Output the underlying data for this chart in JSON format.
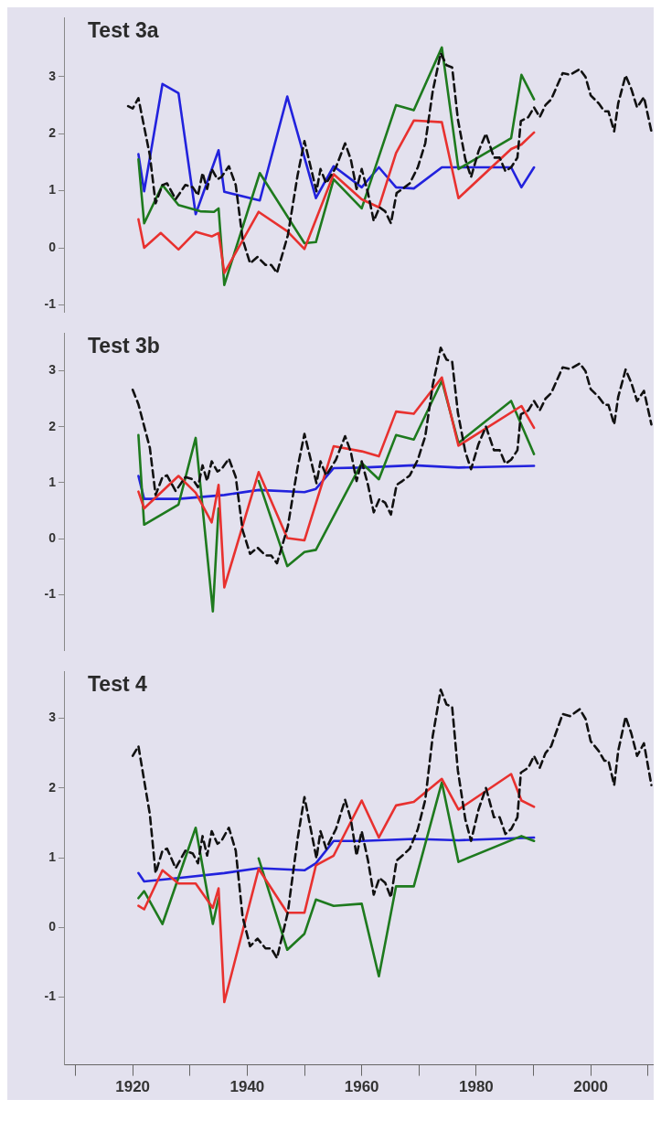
{
  "chart_data": [
    {
      "type": "line",
      "title": "Test 3a",
      "xlim": [
        1908,
        2011
      ],
      "ylim": [
        -1.13,
        4.03
      ],
      "yticks": [
        -1,
        0,
        1,
        2,
        3
      ],
      "tick_labels": "y",
      "grid": false,
      "legend": false,
      "marker": "none",
      "series": [
        {
          "color": "#111111",
          "line_style": "dashed",
          "x": [
            1919.2,
            1920,
            1921,
            1923,
            1924,
            1925.2,
            1926,
            1927.5,
            1929.2,
            1930.5,
            1931.4,
            1932.2,
            1933,
            1933.8,
            1934.8,
            1935.5,
            1936.8,
            1938,
            1939.2,
            1940.5,
            1941.8,
            1943.2,
            1944.2,
            1945.2,
            1946.1,
            1947.1,
            1948.8,
            1950,
            1951.1,
            1952.1,
            1952.8,
            1953.8,
            1955.5,
            1957.1,
            1958.1,
            1959.1,
            1960,
            1961.1,
            1962.1,
            1963.1,
            1964.1,
            1965.1,
            1966.1,
            1967.1,
            1968.4,
            1969.8,
            1971.1,
            1972.4,
            1973.8,
            1974.8,
            1975.8,
            1976.8,
            1978.1,
            1979.1,
            1980.4,
            1981.7,
            1983.1,
            1984.1,
            1985.1,
            1986.1,
            1987.2,
            1987.8,
            1989.1,
            1990.1,
            1991.1,
            1992.1,
            1993.1,
            1995.1,
            1996.4,
            1998.1,
            1999.1,
            2000,
            2001.4,
            2002.4,
            2003.1,
            2004.1,
            2004.8,
            2006.1,
            2007.1,
            2008.1,
            2009.3,
            2010.6
          ],
          "values": [
            2.48,
            2.44,
            2.62,
            1.62,
            0.78,
            1.1,
            1.13,
            0.85,
            1.1,
            1.06,
            0.92,
            1.31,
            1.03,
            1.38,
            1.2,
            1.24,
            1.43,
            1.1,
            0.15,
            -0.27,
            -0.16,
            -0.3,
            -0.3,
            -0.44,
            -0.13,
            0.22,
            1.27,
            1.87,
            1.41,
            0.99,
            1.38,
            1.13,
            1.41,
            1.83,
            1.55,
            1.03,
            1.38,
            0.96,
            0.47,
            0.71,
            0.64,
            0.43,
            0.96,
            1.03,
            1.13,
            1.41,
            1.83,
            2.74,
            3.41,
            3.2,
            3.16,
            2.25,
            1.55,
            1.24,
            1.69,
            2.0,
            1.58,
            1.58,
            1.34,
            1.41,
            1.58,
            2.22,
            2.29,
            2.46,
            2.29,
            2.5,
            2.6,
            3.06,
            3.03,
            3.13,
            2.99,
            2.67,
            2.53,
            2.39,
            2.39,
            2.04,
            2.53,
            3.02,
            2.78,
            2.46,
            2.64,
            2.04
          ]
        },
        {
          "color": "#e8312f",
          "line_style": "solid",
          "x": [
            1921,
            1922,
            1924.9,
            1928,
            1931,
            1933.8,
            1935,
            1936,
            1942,
            1947,
            1950,
            1955.1,
            1960,
            1963,
            1966,
            1969.1,
            1974,
            1976.9,
            1986.1,
            1987.9,
            1990.1
          ],
          "values": [
            0.5,
            0,
            0.26,
            -0.03,
            0.28,
            0.2,
            0.26,
            -0.44,
            0.63,
            0.29,
            -0.02,
            1.29,
            0.85,
            0.71,
            1.66,
            2.23,
            2.2,
            0.87,
            1.73,
            1.81,
            2.02
          ]
        },
        {
          "color": "#1e7a1e",
          "line_style": "solid",
          "x": [
            1921,
            1922,
            1925.2,
            1928,
            1931.8,
            1934.2,
            1935,
            1936,
            1942.2,
            1950,
            1952,
            1955.1,
            1960,
            1966,
            1969.1,
            1974,
            1976.9,
            1986.1,
            1987.9,
            1990.1
          ],
          "values": [
            1.55,
            0.43,
            1.1,
            0.75,
            0.64,
            0.63,
            0.69,
            -0.65,
            1.31,
            0.08,
            0.1,
            1.2,
            0.69,
            2.5,
            2.41,
            3.51,
            1.38,
            1.92,
            3.03,
            2.6
          ]
        },
        {
          "color": "#2222dd",
          "line_style": "solid",
          "x": [
            1921,
            1922,
            1925.2,
            1928,
            1931,
            1935,
            1936,
            1942.2,
            1947,
            1952,
            1955.1,
            1960,
            1963,
            1966,
            1969.1,
            1974,
            1986.1,
            1987.9,
            1990.1
          ],
          "values": [
            1.64,
            0.99,
            2.87,
            2.71,
            0.59,
            1.71,
            0.98,
            0.83,
            2.65,
            0.87,
            1.43,
            1.06,
            1.41,
            1.06,
            1.04,
            1.41,
            1.41,
            1.06,
            1.41
          ]
        }
      ]
    },
    {
      "type": "line",
      "title": "Test 3b",
      "xlim": [
        1908,
        2011
      ],
      "ylim": [
        -2,
        3.67
      ],
      "yticks": [
        -1,
        0,
        1,
        2,
        3
      ],
      "tick_labels": "y",
      "grid": false,
      "legend": false,
      "marker": "none",
      "series": [
        {
          "color": "#111111",
          "line_style": "dashed",
          "x": [
            1920,
            1921,
            1923,
            1924,
            1925.2,
            1926,
            1927.5,
            1929.2,
            1930.5,
            1931.4,
            1932.2,
            1933,
            1933.8,
            1934.8,
            1935.5,
            1936.8,
            1938,
            1939.2,
            1940.5,
            1941.8,
            1943.2,
            1944.2,
            1945.2,
            1946.1,
            1947.1,
            1948.8,
            1950,
            1951.1,
            1952.1,
            1952.8,
            1953.8,
            1955.5,
            1957.1,
            1958.1,
            1959.1,
            1960,
            1961.1,
            1962.1,
            1963.1,
            1964.1,
            1965.1,
            1966.1,
            1967.1,
            1968.4,
            1969.8,
            1971.1,
            1972.4,
            1973.8,
            1974.8,
            1975.8,
            1976.8,
            1978.1,
            1979.1,
            1980.4,
            1981.7,
            1983.1,
            1984.1,
            1985.1,
            1986.1,
            1987.2,
            1987.8,
            1989.1,
            1990.1,
            1991.1,
            1992.1,
            1993.1,
            1995.1,
            1996.4,
            1998.1,
            1999.1,
            2000,
            2001.4,
            2002.4,
            2003.1,
            2004.1,
            2004.8,
            2006.1,
            2007.1,
            2008.1,
            2009.3,
            2010.6
          ],
          "values": [
            2.66,
            2.4,
            1.62,
            0.78,
            1.1,
            1.13,
            0.85,
            1.1,
            1.06,
            0.92,
            1.31,
            1.03,
            1.38,
            1.2,
            1.24,
            1.43,
            1.1,
            0.15,
            -0.27,
            -0.16,
            -0.3,
            -0.3,
            -0.44,
            -0.13,
            0.22,
            1.27,
            1.87,
            1.41,
            0.99,
            1.38,
            1.13,
            1.41,
            1.83,
            1.55,
            1.03,
            1.38,
            0.96,
            0.47,
            0.71,
            0.64,
            0.43,
            0.96,
            1.03,
            1.13,
            1.41,
            1.83,
            2.74,
            3.41,
            3.2,
            3.16,
            2.25,
            1.55,
            1.24,
            1.69,
            2.0,
            1.58,
            1.58,
            1.34,
            1.41,
            1.58,
            2.22,
            2.29,
            2.46,
            2.29,
            2.5,
            2.6,
            3.06,
            3.03,
            3.13,
            2.99,
            2.67,
            2.53,
            2.39,
            2.39,
            2.04,
            2.53,
            3.02,
            2.78,
            2.46,
            2.64,
            2.04
          ]
        },
        {
          "color": "#e8312f",
          "line_style": "solid",
          "x": [
            1921,
            1922,
            1928,
            1931,
            1933.8,
            1935,
            1936,
            1942,
            1947,
            1950,
            1955.1,
            1960,
            1963,
            1966,
            1969.1,
            1974,
            1976.9,
            1987.9,
            1990.1
          ],
          "values": [
            0.84,
            0.54,
            1.12,
            0.82,
            0.29,
            0.96,
            -0.87,
            1.19,
            0.01,
            -0.03,
            1.65,
            1.56,
            1.47,
            2.27,
            2.23,
            2.88,
            1.66,
            2.37,
            1.98
          ]
        },
        {
          "color": "#1e7a1e",
          "line_style": "solid",
          "x": [
            1921,
            1922,
            1928,
            1931,
            1934,
            1935,
            1936,
            1937,
            1942,
            1947,
            1950,
            1952,
            1960,
            1963,
            1966,
            1969.1,
            1974,
            1976.9,
            1986.1,
            1990.1
          ],
          "values": [
            1.85,
            0.25,
            0.61,
            1.8,
            -1.3,
            0.54,
            null,
            null,
            1.03,
            -0.49,
            -0.24,
            -0.2,
            1.35,
            1.06,
            1.85,
            1.77,
            2.82,
            1.71,
            2.46,
            1.51
          ]
        },
        {
          "color": "#2222dd",
          "line_style": "solid",
          "x": [
            1921,
            1922,
            1928,
            1936,
            1942,
            1950,
            1952,
            1955.1,
            1960,
            1969.1,
            1976.9,
            1990.1
          ],
          "values": [
            1.12,
            0.71,
            0.71,
            0.78,
            0.87,
            0.83,
            0.89,
            1.26,
            1.27,
            1.31,
            1.27,
            1.3
          ]
        }
      ]
    },
    {
      "type": "line",
      "title": "Test 4",
      "xlim": [
        1908,
        2011
      ],
      "xticks": [
        {
          "value": 1910,
          "label": null
        },
        1920,
        {
          "value": 1930,
          "label": null
        },
        1940,
        {
          "value": 1950,
          "label": null
        },
        1960,
        {
          "value": 1970,
          "label": null
        },
        1980,
        {
          "value": 1990,
          "label": null
        },
        2000,
        {
          "value": 2010,
          "label": null
        }
      ],
      "ylim": [
        -1.97,
        3.67
      ],
      "yticks": [
        -1,
        0,
        1,
        2,
        3
      ],
      "grid": false,
      "legend": false,
      "marker": "none",
      "series": [
        {
          "color": "#111111",
          "line_style": "dashed",
          "x": [
            1920,
            1921,
            1923,
            1924,
            1925.2,
            1926,
            1927.5,
            1929.2,
            1930.5,
            1931.4,
            1932.2,
            1933,
            1933.8,
            1934.8,
            1935.5,
            1936.8,
            1938,
            1939.2,
            1940.5,
            1941.8,
            1943.2,
            1944.2,
            1945.2,
            1946.1,
            1947.1,
            1948.8,
            1950,
            1951.1,
            1952.1,
            1952.8,
            1953.8,
            1955.5,
            1957.1,
            1958.1,
            1959.1,
            1960,
            1961.1,
            1962.1,
            1963.1,
            1964.1,
            1965.1,
            1966.1,
            1967.1,
            1968.4,
            1969.8,
            1971.1,
            1972.4,
            1973.8,
            1974.8,
            1975.8,
            1976.8,
            1978.1,
            1979.1,
            1980.4,
            1981.7,
            1983.1,
            1984.1,
            1985.1,
            1986.1,
            1987.2,
            1987.8,
            1989.1,
            1990.1,
            1991.1,
            1992.1,
            1993.1,
            1995.1,
            1996.4,
            1998.1,
            1999.1,
            2000,
            2001.4,
            2002.4,
            2003.1,
            2004.1,
            2004.8,
            2006.1,
            2007.1,
            2008.1,
            2009.3,
            2010.6
          ],
          "values": [
            2.46,
            2.6,
            1.62,
            0.78,
            1.1,
            1.13,
            0.85,
            1.1,
            1.06,
            0.92,
            1.31,
            1.03,
            1.38,
            1.2,
            1.24,
            1.43,
            1.1,
            0.15,
            -0.27,
            -0.16,
            -0.3,
            -0.3,
            -0.44,
            -0.13,
            0.22,
            1.27,
            1.87,
            1.41,
            0.99,
            1.38,
            1.13,
            1.41,
            1.83,
            1.55,
            1.03,
            1.38,
            0.96,
            0.47,
            0.71,
            0.64,
            0.43,
            0.96,
            1.03,
            1.13,
            1.41,
            1.83,
            2.74,
            3.41,
            3.2,
            3.16,
            2.25,
            1.55,
            1.24,
            1.69,
            2.0,
            1.58,
            1.58,
            1.34,
            1.41,
            1.58,
            2.22,
            2.29,
            2.46,
            2.29,
            2.5,
            2.6,
            3.06,
            3.03,
            3.13,
            2.99,
            2.67,
            2.53,
            2.39,
            2.39,
            2.04,
            2.53,
            3.02,
            2.78,
            2.46,
            2.64,
            2.04
          ]
        },
        {
          "color": "#e8312f",
          "line_style": "solid",
          "x": [
            1921,
            1922,
            1925.2,
            1928,
            1931,
            1934,
            1935,
            1936,
            1942,
            1947,
            1950,
            1952,
            1955.1,
            1960,
            1963,
            1966,
            1969.1,
            1974,
            1976.9,
            1986.1,
            1987.9,
            1990.1
          ],
          "values": [
            0.31,
            0.26,
            0.82,
            0.63,
            0.63,
            0.28,
            0.56,
            -1.07,
            0.84,
            0.21,
            0.21,
            0.89,
            1.03,
            1.82,
            1.29,
            1.75,
            1.8,
            2.13,
            1.69,
            2.2,
            1.82,
            1.73
          ]
        },
        {
          "color": "#1e7a1e",
          "line_style": "solid",
          "x": [
            1921,
            1922,
            1925.2,
            1931,
            1934,
            1935,
            1936,
            1937,
            1942,
            1947,
            1950,
            1952,
            1955.1,
            1960,
            1963,
            1966,
            1969.1,
            1974,
            1976.9,
            1987.9,
            1990.1
          ],
          "values": [
            0.42,
            0.52,
            0.05,
            1.43,
            0.05,
            0.42,
            null,
            null,
            0.99,
            -0.32,
            -0.09,
            0.4,
            0.31,
            0.34,
            -0.7,
            0.59,
            0.59,
            2.08,
            0.94,
            1.31,
            1.24
          ]
        },
        {
          "color": "#2222dd",
          "line_style": "solid",
          "x": [
            1921,
            1922,
            1928,
            1936,
            1942,
            1950,
            1952,
            1955.1,
            1960,
            1969.1,
            1976.9,
            1990.1
          ],
          "values": [
            0.78,
            0.66,
            0.71,
            0.78,
            0.85,
            0.82,
            0.92,
            1.24,
            1.24,
            1.27,
            1.25,
            1.29
          ]
        }
      ]
    }
  ]
}
